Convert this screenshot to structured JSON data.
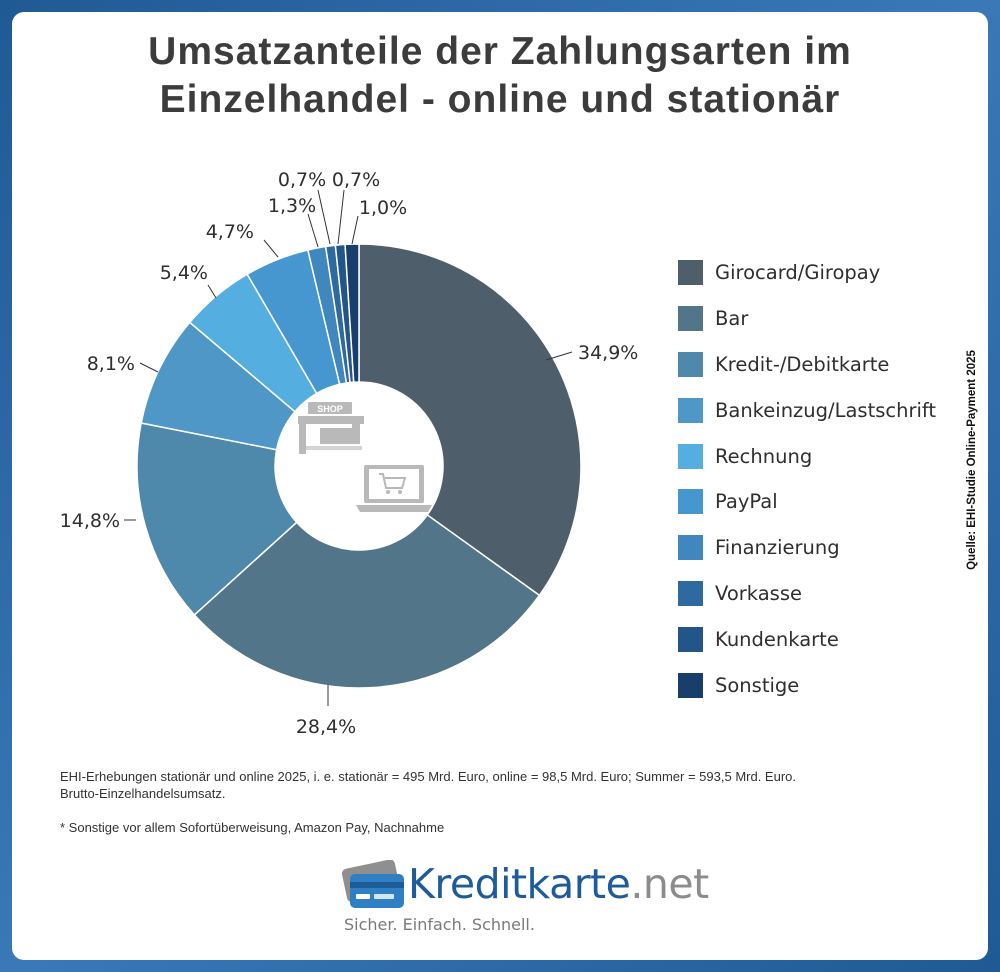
{
  "title": {
    "line1": "Umsatzanteile der Zahlungsarten im",
    "line2": "Einzelhandel - online und stationär"
  },
  "chart_data": {
    "type": "pie",
    "donut": true,
    "title": "Umsatzanteile der Zahlungsarten im Einzelhandel - online und stationär",
    "legend_position": "right",
    "categories": [
      "Girocard/Giropay",
      "Bar",
      "Kredit-/Debitkarte",
      "Bankeinzug/Lastschrift",
      "Rechnung",
      "PayPal",
      "Finanzierung",
      "Vorkasse",
      "Kundenkarte",
      "Sonstige"
    ],
    "values": [
      34.9,
      28.4,
      14.8,
      8.1,
      5.4,
      4.7,
      1.3,
      0.7,
      0.7,
      1.0
    ],
    "value_labels": [
      "34,9%",
      "28,4%",
      "14,8%",
      "8,1%",
      "5,4%",
      "4,7%",
      "1,3%",
      "0,7%",
      "0,7%",
      "1,0%"
    ],
    "colors": [
      "#4e5f6b",
      "#52758a",
      "#4e88aa",
      "#4f97c6",
      "#55aee0",
      "#4697cf",
      "#3f87bd",
      "#2e69a0",
      "#22568a",
      "#183f6c"
    ]
  },
  "center_icons": {
    "shop_sign": "SHOP",
    "icons": [
      "shop-icon",
      "laptop-cart-icon"
    ]
  },
  "source": "Quelle: EHI-Studie Online-Payment 2025",
  "footnote": {
    "line1": "EHI-Erhebungen stationär und online 2025, i. e. stationär = 495 Mrd. Euro, online = 98,5 Mrd. Euro; Summer = 593,5 Mrd. Euro.",
    "line2": "Brutto-Einzelhandelsumsatz.",
    "line3": "* Sonstige vor allem Sofortüberweisung, Amazon Pay, Nachnahme"
  },
  "logo": {
    "brand": "Kreditkarte",
    "tld": ".net",
    "tagline": "Sicher. Einfach. Schnell.",
    "icon": "credit-card-icon"
  }
}
